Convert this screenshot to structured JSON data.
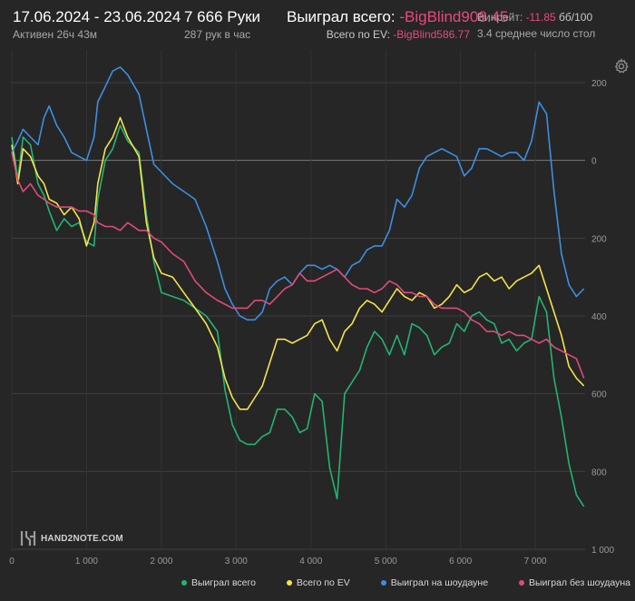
{
  "header": {
    "date_range": "17.06.2024 - 23.06.2024",
    "active": "Активен 26ч 43м",
    "hands": "7 666 Руки",
    "hands_per_hour": "287 рук в час",
    "won_label": "Выиграл всего:",
    "won_value": "-BigBlind908.45",
    "ev_label": "Всего по EV:",
    "ev_value": "-BigBlind586.77",
    "winrate_label": "Винрейт:",
    "winrate_value": "-11.85",
    "winrate_unit": "бб/100",
    "tables_avg": "3.4 среднее число стол"
  },
  "logo_text": "HAND2NOTE.COM",
  "icons": {
    "settings": "gear-icon",
    "logo": "h2n-logo-icon"
  },
  "colors": {
    "background": "#262626",
    "won": "#22b573",
    "ev": "#f4e34b",
    "showdown": "#3c8fe0",
    "no_showdown": "#e04a7a",
    "negative_text": "#e9487c"
  },
  "chart_data": {
    "type": "line",
    "xlim": [
      0,
      7666
    ],
    "ylim": [
      1000,
      -200
    ],
    "y_reversed": true,
    "grid": true,
    "x_ticks": [
      0,
      1000,
      2000,
      3000,
      4000,
      5000,
      6000,
      7000
    ],
    "x_tick_labels": [
      "0",
      "1 000",
      "2 000",
      "3 000",
      "4 000",
      "5 000",
      "6 000",
      "7 000"
    ],
    "y_ticks": [
      -200,
      0,
      200,
      400,
      600,
      800,
      1000
    ],
    "y_tick_labels": [
      "200",
      "0",
      "200",
      "400",
      "600",
      "800",
      "1 000"
    ],
    "legend_position": "bottom-right",
    "series": [
      {
        "name": "Выиграл всего",
        "color": "#22b573",
        "x": [
          0,
          80,
          150,
          250,
          350,
          430,
          500,
          600,
          700,
          800,
          900,
          1000,
          1100,
          1150,
          1250,
          1350,
          1450,
          1550,
          1700,
          1800,
          1900,
          2000,
          2150,
          2300,
          2450,
          2600,
          2750,
          2850,
          2950,
          3050,
          3150,
          3250,
          3350,
          3450,
          3550,
          3650,
          3750,
          3850,
          3950,
          4050,
          4150,
          4250,
          4350,
          4450,
          4550,
          4650,
          4750,
          4850,
          4950,
          5050,
          5150,
          5250,
          5350,
          5450,
          5550,
          5650,
          5750,
          5850,
          5950,
          6050,
          6150,
          6250,
          6350,
          6450,
          6550,
          6650,
          6750,
          6850,
          6950,
          7050,
          7150,
          7250,
          7350,
          7450,
          7550,
          7650
        ],
        "y": [
          -60,
          50,
          -60,
          -40,
          60,
          90,
          130,
          180,
          150,
          170,
          160,
          210,
          220,
          100,
          0,
          -30,
          -90,
          -50,
          -20,
          140,
          260,
          340,
          350,
          360,
          380,
          400,
          440,
          590,
          680,
          720,
          730,
          730,
          710,
          700,
          640,
          640,
          660,
          700,
          690,
          600,
          620,
          790,
          870,
          600,
          570,
          540,
          480,
          440,
          460,
          500,
          450,
          500,
          420,
          430,
          450,
          500,
          480,
          470,
          420,
          440,
          400,
          390,
          410,
          420,
          470,
          460,
          490,
          470,
          460,
          350,
          390,
          560,
          660,
          780,
          860,
          890
        ]
      },
      {
        "name": "Всего по EV",
        "color": "#f4e34b",
        "x": [
          0,
          80,
          150,
          250,
          350,
          430,
          500,
          600,
          700,
          800,
          900,
          1000,
          1100,
          1150,
          1250,
          1350,
          1450,
          1550,
          1700,
          1800,
          1900,
          2000,
          2150,
          2300,
          2450,
          2600,
          2750,
          2850,
          2950,
          3050,
          3150,
          3250,
          3350,
          3450,
          3550,
          3650,
          3750,
          3850,
          3950,
          4050,
          4150,
          4250,
          4350,
          4450,
          4550,
          4650,
          4750,
          4850,
          4950,
          5050,
          5150,
          5250,
          5350,
          5450,
          5550,
          5650,
          5750,
          5850,
          5950,
          6050,
          6150,
          6250,
          6350,
          6450,
          6550,
          6650,
          6750,
          6850,
          6950,
          7050,
          7150,
          7250,
          7350,
          7450,
          7550,
          7650
        ],
        "y": [
          -40,
          60,
          -30,
          -10,
          40,
          60,
          100,
          110,
          140,
          120,
          150,
          220,
          160,
          60,
          -30,
          -60,
          -110,
          -60,
          -10,
          160,
          250,
          290,
          300,
          340,
          380,
          420,
          480,
          560,
          610,
          640,
          640,
          610,
          580,
          520,
          460,
          460,
          470,
          460,
          450,
          420,
          410,
          460,
          490,
          440,
          420,
          380,
          360,
          370,
          390,
          360,
          330,
          350,
          360,
          340,
          350,
          380,
          370,
          350,
          320,
          340,
          330,
          300,
          290,
          310,
          300,
          330,
          310,
          300,
          290,
          270,
          330,
          390,
          450,
          530,
          560,
          580
        ]
      },
      {
        "name": "Выиграл на шоудауне",
        "color": "#3c8fe0",
        "x": [
          0,
          80,
          150,
          250,
          350,
          430,
          500,
          600,
          700,
          800,
          900,
          1000,
          1100,
          1150,
          1250,
          1350,
          1450,
          1550,
          1700,
          1800,
          1900,
          2000,
          2150,
          2300,
          2450,
          2600,
          2750,
          2850,
          2950,
          3050,
          3150,
          3250,
          3350,
          3450,
          3550,
          3650,
          3750,
          3850,
          3950,
          4050,
          4150,
          4250,
          4350,
          4450,
          4550,
          4650,
          4750,
          4850,
          4950,
          5050,
          5150,
          5250,
          5350,
          5450,
          5550,
          5650,
          5750,
          5850,
          5950,
          6050,
          6150,
          6250,
          6350,
          6450,
          6550,
          6650,
          6750,
          6850,
          6950,
          7050,
          7150,
          7250,
          7350,
          7450,
          7550,
          7650
        ],
        "y": [
          -20,
          -50,
          -80,
          -60,
          -40,
          -110,
          -140,
          -90,
          -60,
          -20,
          -10,
          0,
          -60,
          -150,
          -190,
          -230,
          -240,
          -220,
          -170,
          -80,
          10,
          30,
          60,
          80,
          100,
          170,
          260,
          330,
          370,
          400,
          410,
          410,
          390,
          330,
          310,
          300,
          320,
          290,
          270,
          270,
          280,
          270,
          280,
          300,
          270,
          260,
          230,
          220,
          220,
          180,
          100,
          120,
          90,
          20,
          -10,
          -20,
          -30,
          -20,
          -10,
          40,
          20,
          -30,
          -30,
          -20,
          -10,
          -20,
          -20,
          0,
          -50,
          -150,
          -120,
          80,
          240,
          320,
          350,
          330
        ]
      },
      {
        "name": "Выиграл без шоудауна",
        "color": "#e04a7a",
        "x": [
          0,
          80,
          150,
          250,
          350,
          430,
          500,
          600,
          700,
          800,
          900,
          1000,
          1100,
          1150,
          1250,
          1350,
          1450,
          1550,
          1700,
          1800,
          1900,
          2000,
          2150,
          2300,
          2450,
          2600,
          2750,
          2850,
          2950,
          3050,
          3150,
          3250,
          3350,
          3450,
          3550,
          3650,
          3750,
          3850,
          3950,
          4050,
          4150,
          4250,
          4350,
          4450,
          4550,
          4650,
          4750,
          4850,
          4950,
          5050,
          5150,
          5250,
          5350,
          5450,
          5550,
          5650,
          5750,
          5850,
          5950,
          6050,
          6150,
          6250,
          6350,
          6450,
          6550,
          6650,
          6750,
          6850,
          6950,
          7050,
          7150,
          7250,
          7350,
          7450,
          7550,
          7650
        ],
        "y": [
          -20,
          50,
          80,
          60,
          90,
          100,
          110,
          120,
          120,
          120,
          130,
          130,
          140,
          160,
          170,
          170,
          180,
          160,
          180,
          180,
          200,
          210,
          240,
          260,
          310,
          340,
          360,
          370,
          380,
          380,
          380,
          360,
          360,
          370,
          350,
          330,
          320,
          290,
          310,
          310,
          300,
          290,
          280,
          300,
          320,
          330,
          330,
          340,
          330,
          310,
          320,
          340,
          340,
          350,
          350,
          370,
          380,
          380,
          380,
          390,
          410,
          420,
          440,
          440,
          450,
          440,
          450,
          450,
          460,
          470,
          460,
          480,
          490,
          500,
          510,
          560
        ]
      }
    ]
  }
}
